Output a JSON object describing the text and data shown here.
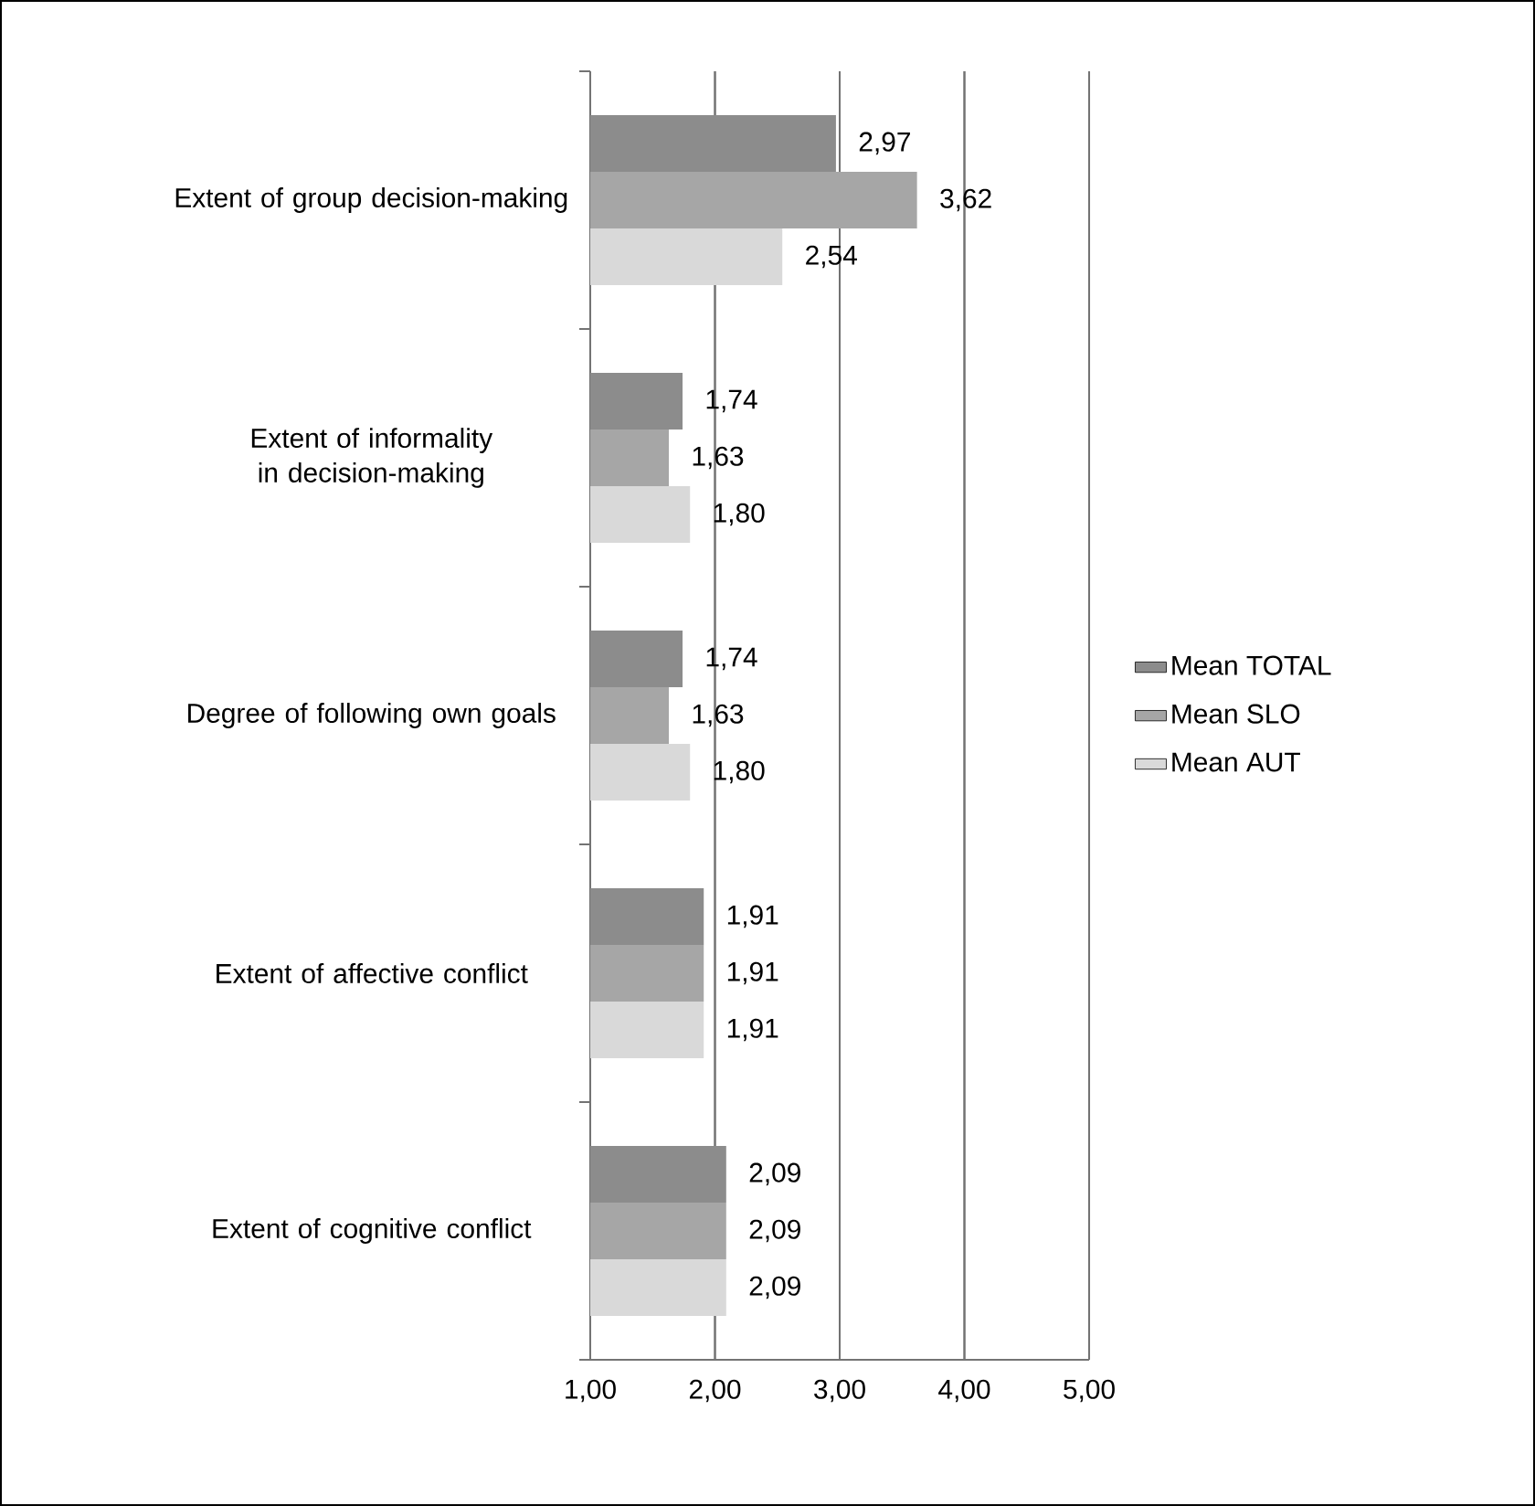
{
  "chart_data": {
    "type": "bar",
    "orientation": "horizontal",
    "categories": [
      "Extent of group decision-making",
      "Extent of informality in decision-making",
      "Degree of following own goals",
      "Extent of affective conflict",
      "Extent of cognitive conflict"
    ],
    "series": [
      {
        "name": "Mean TOTAL",
        "color": "#8c8c8c",
        "values": [
          2.97,
          1.74,
          1.74,
          1.91,
          2.09
        ],
        "value_labels": [
          "2,97",
          "1,74",
          "1,74",
          "1,91",
          "2,09"
        ]
      },
      {
        "name": "Mean SLO",
        "color": "#a6a6a6",
        "values": [
          3.62,
          1.63,
          1.63,
          1.91,
          2.09
        ],
        "value_labels": [
          "3,62",
          "1,63",
          "1,63",
          "1,91",
          "2,09"
        ]
      },
      {
        "name": "Mean AUT",
        "color": "#d9d9d9",
        "values": [
          2.54,
          1.8,
          1.8,
          1.91,
          2.09
        ],
        "value_labels": [
          "2,54",
          "1,80",
          "1,80",
          "1,91",
          "2,09"
        ]
      }
    ],
    "xlim": [
      1,
      5
    ],
    "xticks": [
      {
        "value": 1,
        "label": "1,00"
      },
      {
        "value": 2,
        "label": "2,00"
      },
      {
        "value": 3,
        "label": "3,00"
      },
      {
        "value": 4,
        "label": "4,00"
      },
      {
        "value": 5,
        "label": "5,00"
      }
    ],
    "grid": "x",
    "legend": "right"
  }
}
